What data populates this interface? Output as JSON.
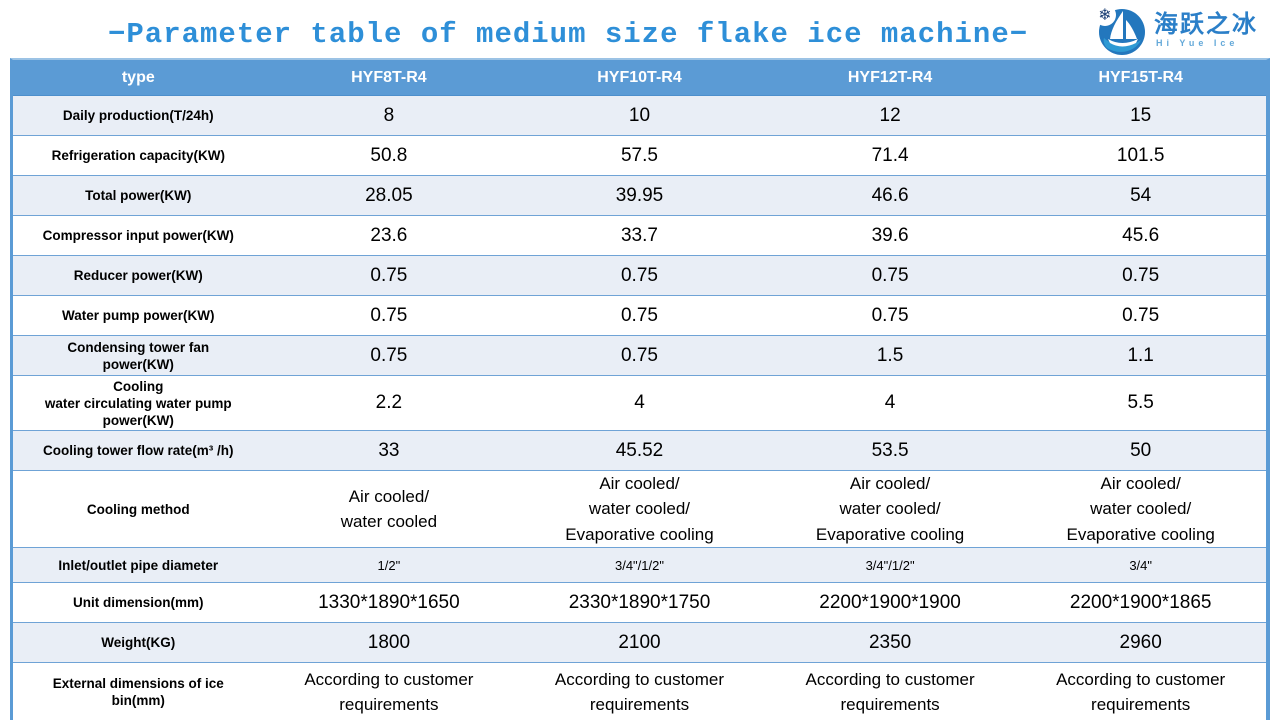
{
  "title": "−Parameter table of medium size flake ice machine−",
  "logo": {
    "cn_name": "海跃之冰",
    "en_name": "Hi Yue Ice",
    "snowflake_icon": "❄",
    "colors": {
      "circle": "#2377bd",
      "snowflake": "#1b3e73",
      "cn_text": "#2b7fc8",
      "en_text": "#64a9d9"
    }
  },
  "colors": {
    "header_bg": "#5b9bd5",
    "stripe_bg": "#e9eef6",
    "row_line": "#6fa3d6",
    "title_text": "#2e8fd8"
  },
  "table": {
    "header": [
      "type",
      "HYF8T-R4",
      "HYF10T-R4",
      "HYF12T-R4",
      "HYF15T-R4"
    ],
    "rows": [
      {
        "label": "Daily production(T/24h)",
        "values": [
          "8",
          "10",
          "12",
          "15"
        ]
      },
      {
        "label": "Refrigeration capacity(KW)",
        "values": [
          "50.8",
          "57.5",
          "71.4",
          "101.5"
        ]
      },
      {
        "label": "Total power(KW)",
        "values": [
          "28.05",
          "39.95",
          "46.6",
          "54"
        ]
      },
      {
        "label": "Compressor input power(KW)",
        "values": [
          "23.6",
          "33.7",
          "39.6",
          "45.6"
        ]
      },
      {
        "label": "Reducer power(KW)",
        "values": [
          "0.75",
          "0.75",
          "0.75",
          "0.75"
        ]
      },
      {
        "label": "Water pump power(KW)",
        "values": [
          "0.75",
          "0.75",
          "0.75",
          "0.75"
        ]
      },
      {
        "label": "Condensing tower fan\npower(KW)",
        "values": [
          "0.75",
          "0.75",
          "1.5",
          "1.1"
        ]
      },
      {
        "label": "Cooling\nwater circulating water pump\npower(KW)",
        "values": [
          "2.2",
          "4",
          "4",
          "5.5"
        ]
      },
      {
        "label": "Cooling tower flow rate(m³ /h)",
        "values": [
          "33",
          "45.52",
          "53.5",
          "50"
        ]
      },
      {
        "label": "Cooling method",
        "values": [
          "Air cooled/\nwater cooled",
          "Air cooled/\nwater cooled/\nEvaporative cooling",
          "Air cooled/\nwater cooled/\nEvaporative cooling",
          "Air cooled/\nwater cooled/\nEvaporative cooling"
        ]
      },
      {
        "label": "Inlet/outlet pipe diameter",
        "values": [
          "1/2\"",
          "3/4\"/1/2\"",
          "3/4\"/1/2\"",
          "3/4\""
        ]
      },
      {
        "label": "Unit dimension(mm)",
        "values": [
          "1330*1890*1650",
          "2330*1890*1750",
          "2200*1900*1900",
          "2200*1900*1865"
        ]
      },
      {
        "label": "Weight(KG)",
        "values": [
          "1800",
          "2100",
          "2350",
          "2960"
        ]
      },
      {
        "label": "External dimensions of ice\nbin(mm)",
        "values": [
          "According to customer\nrequirements",
          "According to customer\nrequirements",
          "According to customer\nrequirements",
          "According to customer\nrequirements"
        ]
      }
    ]
  }
}
